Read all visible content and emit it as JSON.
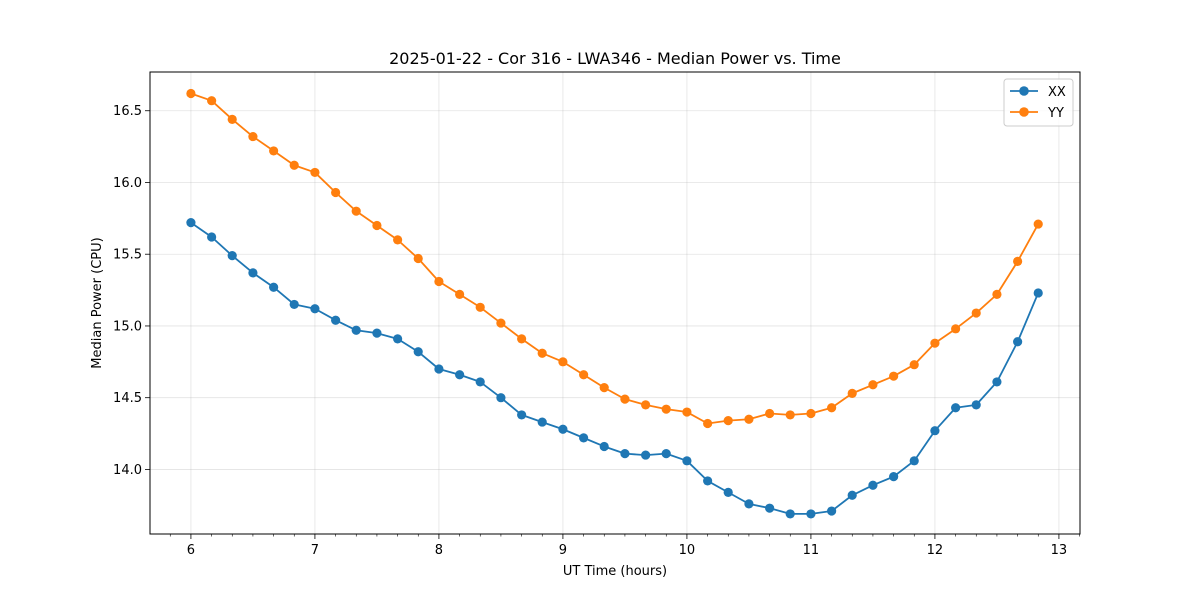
{
  "chart_data": {
    "type": "line",
    "title": "2025-01-22 - Cor 316 - LWA346 - Median Power vs. Time",
    "xlabel": "UT Time (hours)",
    "ylabel": "Median Power (CPU)",
    "xlim": [
      5.67,
      13.17
    ],
    "ylim": [
      13.55,
      16.77
    ],
    "xticks": [
      6,
      7,
      8,
      9,
      10,
      11,
      12,
      13
    ],
    "yticks": [
      14.0,
      14.5,
      15.0,
      15.5,
      16.0,
      16.5
    ],
    "ytick_labels": [
      "14.0",
      "14.5",
      "15.0",
      "15.5",
      "16.0",
      "16.5"
    ],
    "grid": true,
    "legend_position": "top-right",
    "x": [
      6.0,
      6.167,
      6.333,
      6.5,
      6.667,
      6.833,
      7.0,
      7.167,
      7.333,
      7.5,
      7.667,
      7.833,
      8.0,
      8.167,
      8.333,
      8.5,
      8.667,
      8.833,
      9.0,
      9.167,
      9.333,
      9.5,
      9.667,
      9.833,
      10.0,
      10.167,
      10.333,
      10.5,
      10.667,
      10.833,
      11.0,
      11.167,
      11.333,
      11.5,
      11.667,
      11.833,
      12.0,
      12.167,
      12.333,
      12.5,
      12.667,
      12.833
    ],
    "series": [
      {
        "name": "XX",
        "color": "#1f77b4",
        "values": [
          15.72,
          15.62,
          15.49,
          15.37,
          15.27,
          15.15,
          15.12,
          15.04,
          14.97,
          14.95,
          14.91,
          14.82,
          14.7,
          14.66,
          14.61,
          14.5,
          14.38,
          14.33,
          14.28,
          14.22,
          14.16,
          14.11,
          14.1,
          14.11,
          14.06,
          13.92,
          13.84,
          13.76,
          13.73,
          13.69,
          13.69,
          13.71,
          13.82,
          13.89,
          13.95,
          14.06,
          14.27,
          14.43,
          14.45,
          14.61,
          14.89,
          15.23
        ]
      },
      {
        "name": "YY",
        "color": "#ff7f0e",
        "values": [
          16.62,
          16.57,
          16.44,
          16.32,
          16.22,
          16.12,
          16.07,
          15.93,
          15.8,
          15.7,
          15.6,
          15.47,
          15.31,
          15.22,
          15.13,
          15.02,
          14.91,
          14.81,
          14.75,
          14.66,
          14.57,
          14.49,
          14.45,
          14.42,
          14.4,
          14.32,
          14.34,
          14.35,
          14.39,
          14.38,
          14.39,
          14.43,
          14.53,
          14.59,
          14.65,
          14.73,
          14.88,
          14.98,
          15.09,
          15.22,
          15.45,
          15.71
        ]
      }
    ]
  }
}
